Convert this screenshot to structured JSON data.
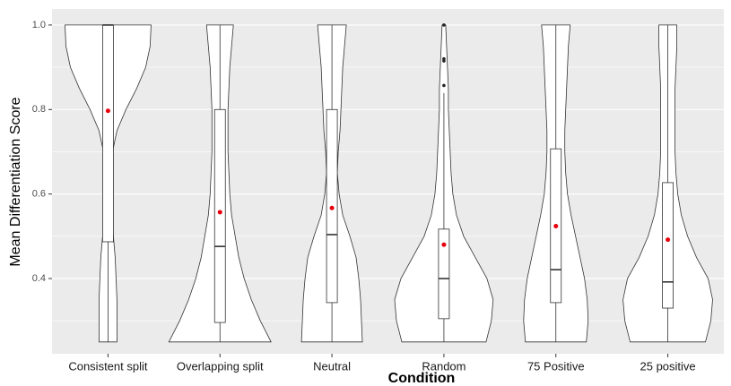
{
  "chart_data": {
    "type": "violin",
    "x_label": "Condition",
    "y_label": "Mean Differentiation Score",
    "categories": [
      "Consistent split",
      "Overlapping split",
      "Neutral",
      "Random",
      "75 Positive",
      "25 positive"
    ],
    "ylim": [
      0.222,
      1.038
    ],
    "yticks": [
      0.4,
      0.6,
      0.8,
      {
        "value": 1,
        "label": "1.0"
      }
    ],
    "yminor": [
      0.3,
      0.5,
      0.7,
      0.9
    ],
    "grid": true,
    "violin_color": "#ffffff",
    "mean_color": "#e8000b",
    "density_y": [
      0.25,
      0.3,
      0.35,
      0.4,
      0.45,
      0.5,
      0.55,
      0.6,
      0.65,
      0.7,
      0.75,
      0.8,
      0.85,
      0.9,
      0.95,
      1.0
    ],
    "groups": [
      {
        "min": 0.25,
        "q1": 0.487,
        "median": 1.0,
        "q3": 1.0,
        "max": 1.0,
        "mean": 0.797,
        "outliers": [],
        "density": [
          10,
          10,
          10,
          9,
          8,
          6,
          4,
          3,
          3,
          5,
          10,
          20,
          32,
          42,
          47,
          48
        ]
      },
      {
        "min": 0.25,
        "q1": 0.296,
        "median": 0.476,
        "q3": 0.8,
        "max": 1.0,
        "mean": 0.557,
        "outliers": [],
        "density": [
          57,
          45,
          35,
          27,
          21,
          17,
          13,
          11,
          10,
          9,
          9,
          9,
          10,
          11,
          13,
          15
        ]
      },
      {
        "min": 0.25,
        "q1": 0.343,
        "median": 0.504,
        "q3": 0.8,
        "max": 1.0,
        "mean": 0.567,
        "outliers": [],
        "density": [
          34,
          33,
          32,
          30,
          27,
          20,
          12,
          8,
          6,
          7,
          9,
          10,
          11,
          12,
          14,
          16
        ]
      },
      {
        "min": 0.25,
        "q1": 0.305,
        "median": 0.4,
        "q3": 0.517,
        "max": 0.839,
        "mean": 0.48,
        "outliers": [
          1.0,
          0.92,
          0.915,
          0.857
        ],
        "density": [
          47,
          53,
          55,
          48,
          35,
          22,
          14,
          10,
          8,
          7,
          6,
          5,
          5,
          4,
          3,
          2
        ]
      },
      {
        "min": 0.25,
        "q1": 0.343,
        "median": 0.421,
        "q3": 0.707,
        "max": 1.0,
        "mean": 0.524,
        "outliers": [],
        "density": [
          34,
          36,
          35,
          32,
          27,
          22,
          17,
          13,
          11,
          10,
          10,
          11,
          12,
          13,
          14,
          16
        ]
      },
      {
        "min": 0.25,
        "q1": 0.33,
        "median": 0.392,
        "q3": 0.627,
        "max": 1.0,
        "mean": 0.492,
        "outliers": [],
        "density": [
          42,
          48,
          50,
          45,
          32,
          22,
          15,
          11,
          9,
          8,
          8,
          8,
          8,
          9,
          10,
          10
        ]
      }
    ]
  }
}
